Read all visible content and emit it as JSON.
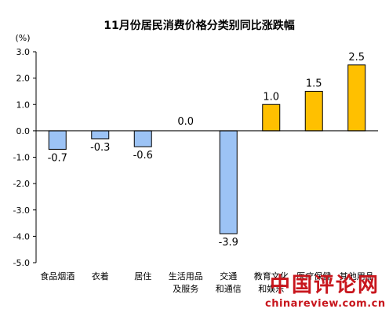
{
  "chart_data": {
    "type": "bar",
    "title": "11月份居民消费价格分类别同比涨跌幅",
    "ylabel": "(%)",
    "ylim": [
      -5.0,
      3.0
    ],
    "yticks": [
      "3.0",
      "2.0",
      "1.0",
      "0.0",
      "-1.0",
      "-2.0",
      "-3.0",
      "-4.0",
      "-5.0"
    ],
    "ytick_values": [
      3,
      2,
      1,
      0,
      -1,
      -2,
      -3,
      -4,
      -5
    ],
    "grid": false,
    "categories": [
      [
        "食品烟酒"
      ],
      [
        "衣着"
      ],
      [
        "居住"
      ],
      [
        "生活用品",
        "及服务"
      ],
      [
        "交通",
        "和通信"
      ],
      [
        "教育文化",
        "和娱乐"
      ],
      [
        "医疗保健"
      ],
      [
        "其他用品"
      ]
    ],
    "values": [
      -0.7,
      -0.3,
      -0.6,
      0.0,
      -3.9,
      1.0,
      1.5,
      2.5
    ],
    "value_labels": [
      "-0.7",
      "-0.3",
      "-0.6",
      "0.0",
      "-3.9",
      "1.0",
      "1.5",
      "2.5"
    ],
    "colors": {
      "negative": "#9cc3f5",
      "positive": "#ffc000",
      "stroke": "#000000"
    }
  },
  "watermark": {
    "main": "中国评论网",
    "sub": "chinareview.com.cn"
  }
}
